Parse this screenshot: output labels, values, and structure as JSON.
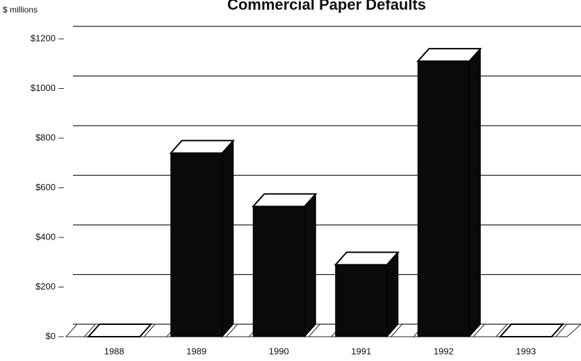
{
  "chart_data": {
    "type": "bar",
    "title": "Commercial Paper Defaults",
    "y_label": "$ millions",
    "categories": [
      "1988",
      "1989",
      "1990",
      "1991",
      "1992",
      "1993"
    ],
    "values": [
      0,
      740,
      525,
      290,
      1110,
      0
    ],
    "color": "#0a0a0a",
    "ylim": [
      0,
      1200
    ],
    "yticks": [
      {
        "value": 0,
        "label": "$0"
      },
      {
        "value": 200,
        "label": "$200"
      },
      {
        "value": 400,
        "label": "$400"
      },
      {
        "value": 600,
        "label": "$600"
      },
      {
        "value": 800,
        "label": "$800"
      },
      {
        "value": 1000,
        "label": "$1000"
      },
      {
        "value": 1200,
        "label": "$1200"
      }
    ],
    "grid": true
  }
}
